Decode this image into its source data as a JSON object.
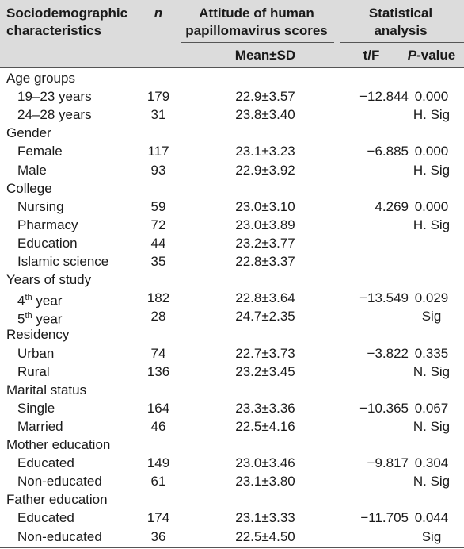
{
  "header": {
    "characteristics": "Sociodemographic characteristics",
    "n": "n",
    "attitude": "Attitude of human papillomavirus scores",
    "statistical": "Statistical analysis",
    "mean_sd": "Mean±SD",
    "tf": "t/F",
    "p_prefix": "P",
    "p_suffix": "-value"
  },
  "rows": [
    {
      "label": "Age groups",
      "group": true
    },
    {
      "label": "19–23 years",
      "n": "179",
      "mean": "22.9±3.57",
      "tf": "−12.844",
      "p": "0.000"
    },
    {
      "label": "24–28 years",
      "n": "31",
      "mean": "23.8±3.40",
      "tf": "",
      "p": "H. Sig"
    },
    {
      "label": "Gender",
      "group": true
    },
    {
      "label": "Female",
      "n": "117",
      "mean": "23.1±3.23",
      "tf": "−6.885",
      "p": "0.000"
    },
    {
      "label": "Male",
      "n": "93",
      "mean": "22.9±3.92",
      "tf": "",
      "p": "H. Sig"
    },
    {
      "label": "College",
      "group": true
    },
    {
      "label": "Nursing",
      "n": "59",
      "mean": "23.0±3.10",
      "tf": "4.269",
      "p": "0.000"
    },
    {
      "label": "Pharmacy",
      "n": "72",
      "mean": "23.0±3.89",
      "tf": "",
      "p": "H. Sig"
    },
    {
      "label": "Education",
      "n": "44",
      "mean": "23.2±3.77",
      "tf": "",
      "p": ""
    },
    {
      "label": "Islamic science",
      "n": "35",
      "mean": "22.8±3.37",
      "tf": "",
      "p": ""
    },
    {
      "label": "Years of study",
      "group": true
    },
    {
      "label": "4",
      "sup": "th",
      "label_suffix": " year",
      "n": "182",
      "mean": "22.8±3.64",
      "tf": "−13.549",
      "p": "0.029"
    },
    {
      "label": "5",
      "sup": "th",
      "label_suffix": " year",
      "n": "28",
      "mean": "24.7±2.35",
      "tf": "",
      "p": "Sig"
    },
    {
      "label": "Residency",
      "group": true
    },
    {
      "label": "Urban",
      "n": "74",
      "mean": "22.7±3.73",
      "tf": "−3.822",
      "p": "0.335"
    },
    {
      "label": "Rural",
      "n": "136",
      "mean": "23.2±3.45",
      "tf": "",
      "p": "N. Sig"
    },
    {
      "label": "Marital status",
      "group": true
    },
    {
      "label": "Single",
      "n": "164",
      "mean": "23.3±3.36",
      "tf": "−10.365",
      "p": "0.067"
    },
    {
      "label": "Married",
      "n": "46",
      "mean": "22.5±4.16",
      "tf": "",
      "p": "N. Sig"
    },
    {
      "label": "Mother education",
      "group": true
    },
    {
      "label": "Educated",
      "n": "149",
      "mean": "23.0±3.46",
      "tf": "−9.817",
      "p": "0.304"
    },
    {
      "label": "Non-educated",
      "n": "61",
      "mean": "23.1±3.80",
      "tf": "",
      "p": "N. Sig"
    },
    {
      "label": "Father education",
      "group": true
    },
    {
      "label": "Educated",
      "n": "174",
      "mean": "23.1±3.33",
      "tf": "−11.705",
      "p": "0.044"
    },
    {
      "label": "Non-educated",
      "n": "36",
      "mean": "22.5±4.50",
      "tf": "",
      "p": "Sig"
    }
  ]
}
